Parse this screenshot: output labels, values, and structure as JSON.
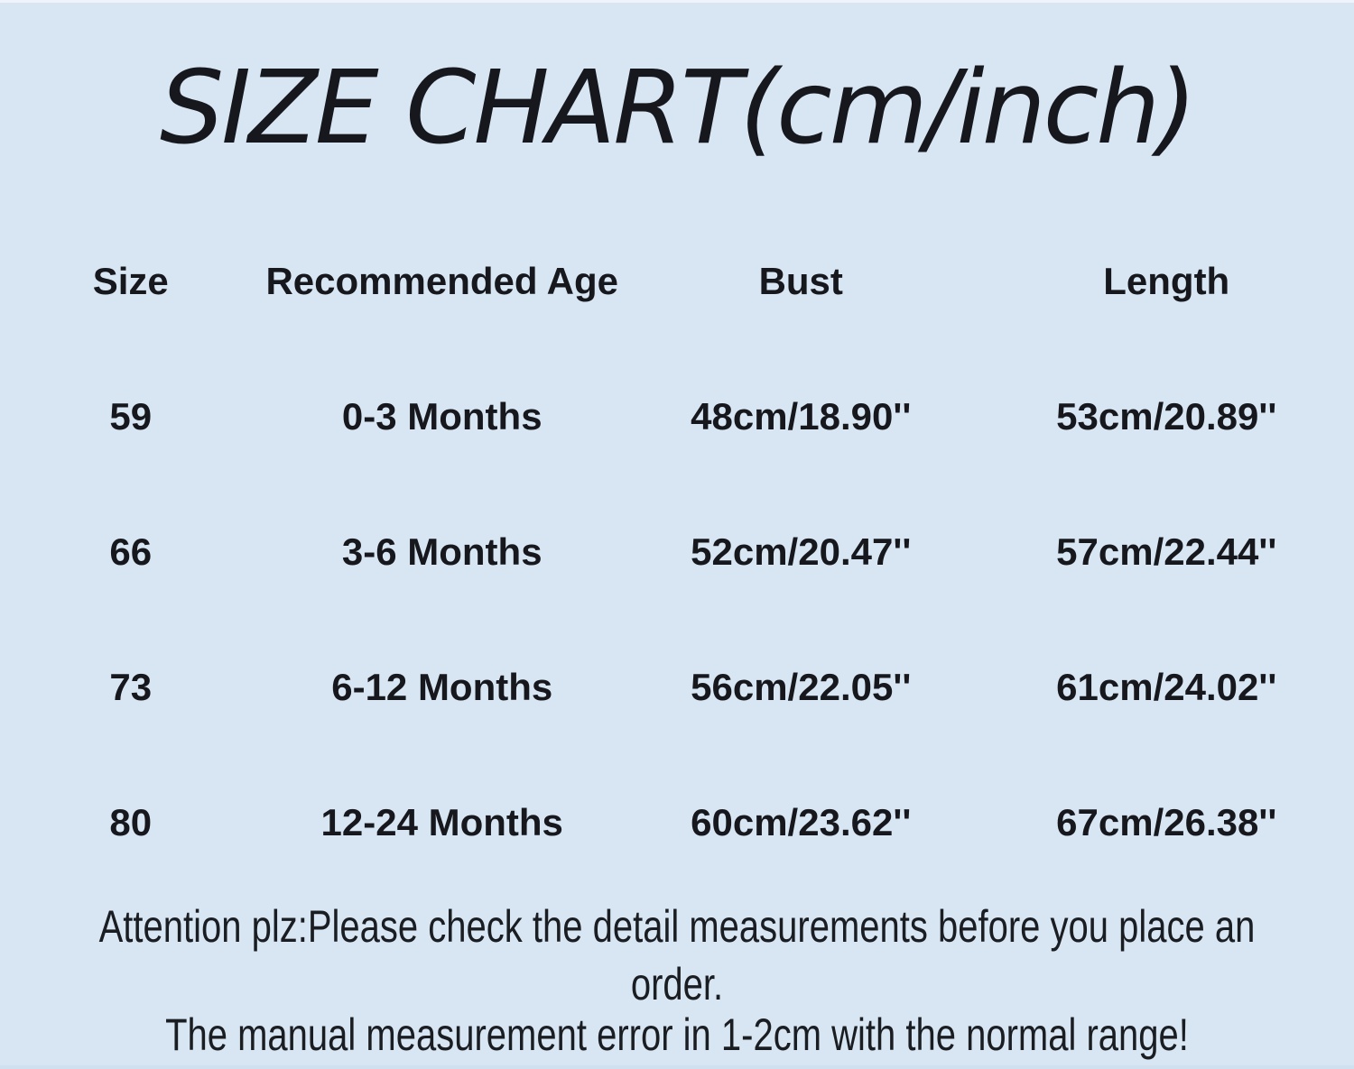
{
  "title": "SIZE CHART(cm/inch)",
  "table": {
    "headers": [
      "Size",
      "Recommended Age",
      "Bust",
      "Length"
    ],
    "rows": [
      [
        "59",
        "0-3 Months",
        "48cm/18.90''",
        "53cm/20.89''"
      ],
      [
        "66",
        "3-6 Months",
        "52cm/20.47''",
        "57cm/22.44''"
      ],
      [
        "73",
        "6-12 Months",
        "56cm/22.05''",
        "61cm/24.02''"
      ],
      [
        "80",
        "12-24 Months",
        "60cm/23.62''",
        "67cm/26.38''"
      ]
    ]
  },
  "footer": {
    "note1": "Attention plz:Please check the detail measurements before you place an\norder.",
    "note2": "The manual measurement error in 1-2cm with the normal range!"
  },
  "colors": {
    "background": "#d8e6f3",
    "text": "#16181d"
  },
  "chart_data": {
    "type": "table",
    "title": "SIZE CHART(cm/inch)",
    "columns": [
      "Size",
      "Recommended Age",
      "Bust",
      "Length"
    ],
    "rows": [
      {
        "size": "59",
        "recommended_age": "0-3 Months",
        "bust_cm": 48,
        "bust_inch": 18.9,
        "length_cm": 53,
        "length_inch": 20.89
      },
      {
        "size": "66",
        "recommended_age": "3-6 Months",
        "bust_cm": 52,
        "bust_inch": 20.47,
        "length_cm": 57,
        "length_inch": 22.44
      },
      {
        "size": "73",
        "recommended_age": "6-12 Months",
        "bust_cm": 56,
        "bust_inch": 22.05,
        "length_cm": 61,
        "length_inch": 24.02
      },
      {
        "size": "80",
        "recommended_age": "12-24 Months",
        "bust_cm": 60,
        "bust_inch": 23.62,
        "length_cm": 67,
        "length_inch": 26.38
      }
    ],
    "notes": [
      "Attention plz:Please check the detail measurements before you place an order.",
      "The manual measurement error in 1-2cm with the normal range!"
    ],
    "units": "cm/inch"
  }
}
